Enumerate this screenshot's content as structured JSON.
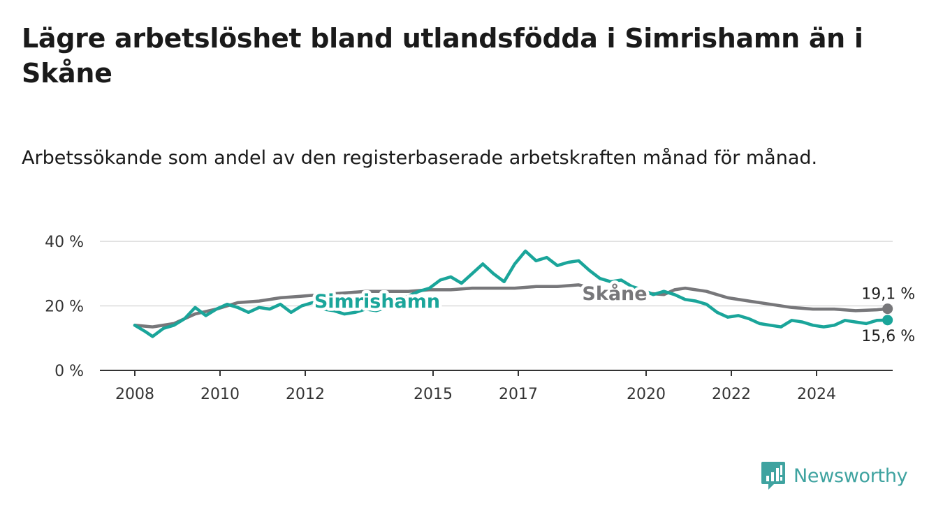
{
  "title": "Lägre arbetslöshet bland utlandsfödda i Simrishamn än i Skåne",
  "subtitle": "Arbetssökande som andel av den registerbaserade arbetskraften månad för månad.",
  "brand": {
    "name": "Newsworthy",
    "icon": "newsworthy-logo-icon",
    "color": "#3fa3a0"
  },
  "chart_data": {
    "type": "line",
    "x_tick_labels": [
      "2008",
      "2010",
      "2012",
      "2015",
      "2017",
      "2020",
      "2022",
      "2024"
    ],
    "y_tick_labels": [
      "0 %",
      "20 %",
      "40 %"
    ],
    "ylim": [
      0,
      40
    ],
    "xlim": [
      "2008-01",
      "2025-11"
    ],
    "grid": true,
    "series": [
      {
        "name": "Simrishamn",
        "color": "#1aa59a",
        "end_label": "15,6 %",
        "points": [
          [
            "2008-01",
            14.0
          ],
          [
            "2008-04",
            12.0
          ],
          [
            "2008-06",
            10.5
          ],
          [
            "2008-09",
            13.0
          ],
          [
            "2008-12",
            14.0
          ],
          [
            "2009-03",
            16.0
          ],
          [
            "2009-06",
            19.5
          ],
          [
            "2009-09",
            17.0
          ],
          [
            "2009-12",
            19.0
          ],
          [
            "2010-03",
            20.5
          ],
          [
            "2010-06",
            19.5
          ],
          [
            "2010-09",
            18.0
          ],
          [
            "2010-12",
            19.5
          ],
          [
            "2011-03",
            19.0
          ],
          [
            "2011-06",
            20.5
          ],
          [
            "2011-09",
            18.0
          ],
          [
            "2011-12",
            20.0
          ],
          [
            "2012-03",
            21.0
          ],
          [
            "2012-06",
            19.0
          ],
          [
            "2012-09",
            18.5
          ],
          [
            "2012-12",
            17.5
          ],
          [
            "2013-03",
            18.0
          ],
          [
            "2013-06",
            19.0
          ],
          [
            "2013-09",
            18.5
          ],
          [
            "2013-12",
            19.5
          ],
          [
            "2014-03",
            21.5
          ],
          [
            "2014-06",
            23.0
          ],
          [
            "2014-09",
            24.5
          ],
          [
            "2014-12",
            25.5
          ],
          [
            "2015-03",
            28.0
          ],
          [
            "2015-06",
            29.0
          ],
          [
            "2015-09",
            27.0
          ],
          [
            "2015-12",
            30.0
          ],
          [
            "2016-03",
            33.0
          ],
          [
            "2016-06",
            30.0
          ],
          [
            "2016-09",
            27.5
          ],
          [
            "2016-12",
            33.0
          ],
          [
            "2017-03",
            37.0
          ],
          [
            "2017-06",
            34.0
          ],
          [
            "2017-09",
            35.0
          ],
          [
            "2017-12",
            32.5
          ],
          [
            "2018-03",
            33.5
          ],
          [
            "2018-06",
            34.0
          ],
          [
            "2018-09",
            31.0
          ],
          [
            "2018-12",
            28.5
          ],
          [
            "2019-03",
            27.5
          ],
          [
            "2019-06",
            28.0
          ],
          [
            "2019-09",
            26.0
          ],
          [
            "2019-12",
            25.0
          ],
          [
            "2020-03",
            23.5
          ],
          [
            "2020-06",
            24.5
          ],
          [
            "2020-09",
            23.5
          ],
          [
            "2020-12",
            22.0
          ],
          [
            "2021-03",
            21.5
          ],
          [
            "2021-06",
            20.5
          ],
          [
            "2021-09",
            18.0
          ],
          [
            "2021-12",
            16.5
          ],
          [
            "2022-03",
            17.0
          ],
          [
            "2022-06",
            16.0
          ],
          [
            "2022-09",
            14.5
          ],
          [
            "2022-12",
            14.0
          ],
          [
            "2023-03",
            13.5
          ],
          [
            "2023-06",
            15.5
          ],
          [
            "2023-09",
            15.0
          ],
          [
            "2023-12",
            14.0
          ],
          [
            "2024-03",
            13.5
          ],
          [
            "2024-06",
            14.0
          ],
          [
            "2024-09",
            15.5
          ],
          [
            "2024-12",
            15.0
          ],
          [
            "2025-03",
            14.5
          ],
          [
            "2025-06",
            15.5
          ],
          [
            "2025-09",
            15.6
          ]
        ]
      },
      {
        "name": "Skåne",
        "color": "#77777a",
        "end_label": "19,1 %",
        "points": [
          [
            "2008-01",
            14.0
          ],
          [
            "2008-06",
            13.5
          ],
          [
            "2008-12",
            14.5
          ],
          [
            "2009-06",
            17.5
          ],
          [
            "2009-12",
            19.0
          ],
          [
            "2010-06",
            21.0
          ],
          [
            "2010-12",
            21.5
          ],
          [
            "2011-06",
            22.5
          ],
          [
            "2011-12",
            23.0
          ],
          [
            "2012-06",
            23.5
          ],
          [
            "2012-12",
            24.0
          ],
          [
            "2013-06",
            24.5
          ],
          [
            "2013-12",
            24.5
          ],
          [
            "2014-06",
            24.5
          ],
          [
            "2014-12",
            25.0
          ],
          [
            "2015-06",
            25.0
          ],
          [
            "2015-12",
            25.5
          ],
          [
            "2016-06",
            25.5
          ],
          [
            "2016-12",
            25.5
          ],
          [
            "2017-06",
            26.0
          ],
          [
            "2017-12",
            26.0
          ],
          [
            "2018-06",
            26.5
          ],
          [
            "2018-12",
            25.0
          ],
          [
            "2019-06",
            24.5
          ],
          [
            "2019-12",
            24.0
          ],
          [
            "2020-06",
            23.5
          ],
          [
            "2020-09",
            25.0
          ],
          [
            "2020-12",
            25.5
          ],
          [
            "2021-06",
            24.5
          ],
          [
            "2021-12",
            22.5
          ],
          [
            "2022-06",
            21.5
          ],
          [
            "2022-12",
            20.5
          ],
          [
            "2023-06",
            19.5
          ],
          [
            "2023-12",
            19.0
          ],
          [
            "2024-06",
            19.0
          ],
          [
            "2024-12",
            18.5
          ],
          [
            "2025-06",
            18.8
          ],
          [
            "2025-09",
            19.1
          ]
        ]
      }
    ]
  }
}
